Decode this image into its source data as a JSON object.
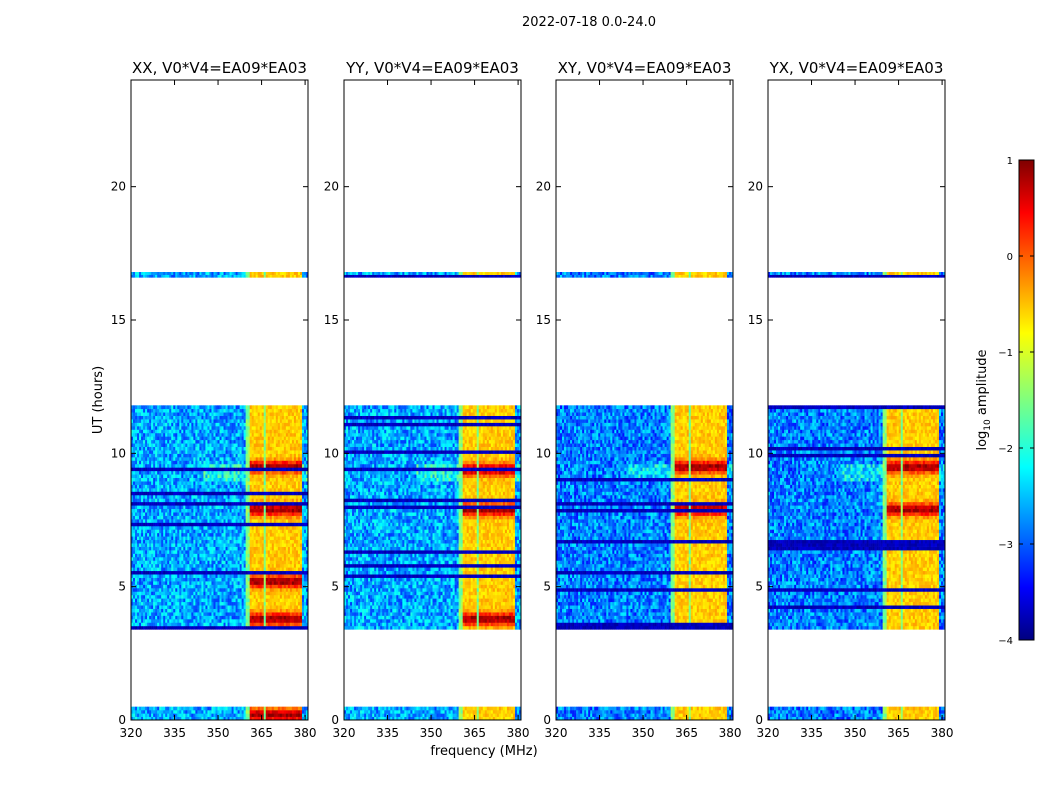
{
  "figure_title": "2022-07-18 0.0-24.0",
  "chart_data": {
    "type": "heatmap",
    "title": "2022-07-18 0.0-24.0",
    "xlabel": "frequency (MHz)",
    "ylabel": "UT (hours)",
    "xlim": [
      320,
      381
    ],
    "ylim": [
      0,
      24
    ],
    "xticks": [
      320,
      335,
      350,
      365,
      380
    ],
    "yticks": [
      0,
      5,
      10,
      15,
      20
    ],
    "panels": [
      {
        "title": "XX, V0*V4=EA09*EA03",
        "pol": "XX",
        "strong_band_mhz": [
          359.5,
          379
        ],
        "peak_hours": [
          9.5,
          7.9,
          5.2,
          3.8,
          0.2
        ]
      },
      {
        "title": "YY, V0*V4=EA09*EA03",
        "pol": "YY",
        "strong_band_mhz": [
          359.5,
          379
        ],
        "peak_hours": [
          9.4,
          7.9,
          3.8
        ]
      },
      {
        "title": "XY, V0*V4=EA09*EA03",
        "pol": "XY",
        "strong_band_mhz": [
          359.5,
          379
        ],
        "peak_hours": [
          9.5,
          7.9
        ]
      },
      {
        "title": "YX, V0*V4=EA09*EA03",
        "pol": "YX",
        "strong_band_mhz": [
          359.5,
          379
        ],
        "peak_hours": [
          9.5,
          7.9
        ]
      }
    ],
    "data_blocks_hours": [
      [
        0.0,
        0.5
      ],
      [
        3.4,
        11.8
      ],
      [
        16.6,
        16.8
      ]
    ],
    "gaps_hours": [
      [
        0.5,
        3.4
      ],
      [
        11.8,
        16.6
      ],
      [
        16.8,
        24.0
      ]
    ],
    "colorbar": {
      "label": "log10 amplitude",
      "label_main": "log",
      "label_sub": "10",
      "label_tail": " amplitude",
      "range": [
        -4,
        1
      ],
      "ticks": [
        "1",
        "0",
        "−1",
        "−2",
        "−3",
        "−4"
      ],
      "colormap": "jet"
    }
  }
}
